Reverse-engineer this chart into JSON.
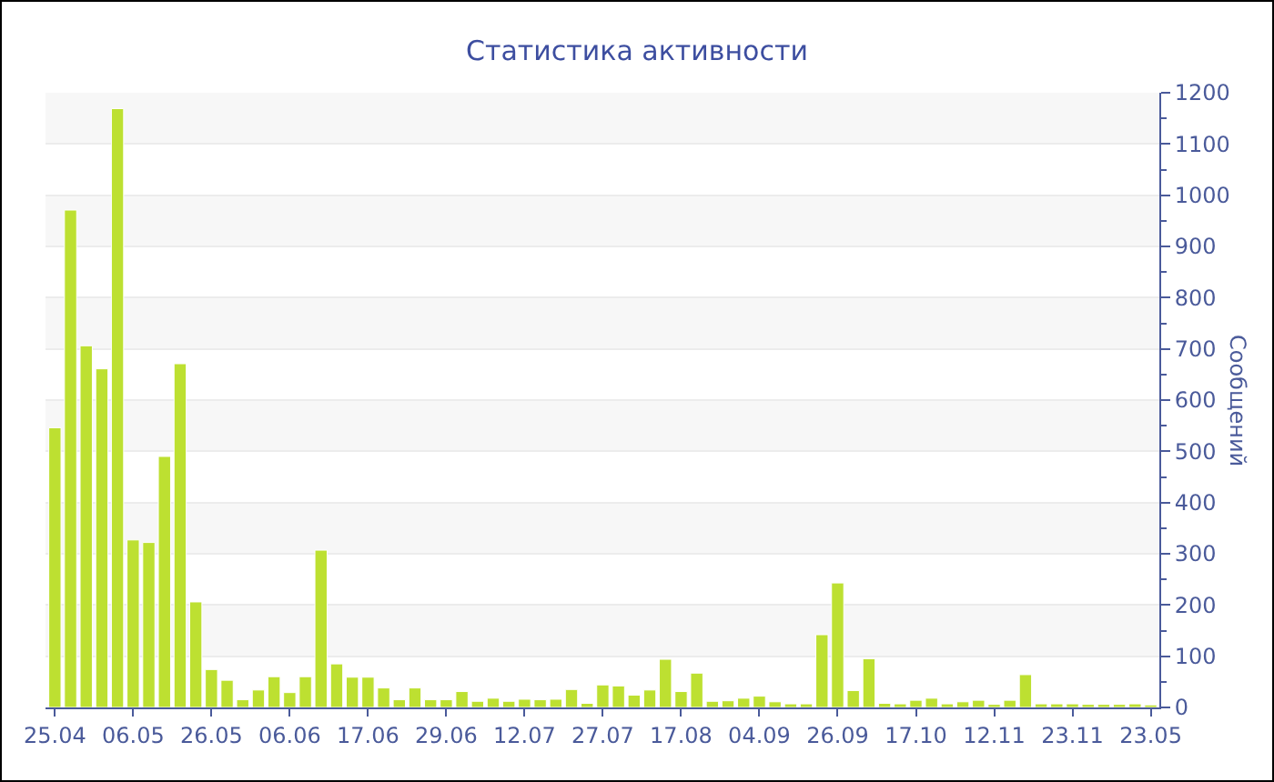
{
  "chart_data": {
    "type": "bar",
    "title": "Статистика активности",
    "ylabel": "Сообщений",
    "categories": [
      "25.04",
      null,
      null,
      null,
      null,
      "06.05",
      null,
      null,
      null,
      null,
      "26.05",
      null,
      null,
      null,
      null,
      "06.06",
      null,
      null,
      null,
      null,
      "17.06",
      null,
      null,
      null,
      null,
      "29.06",
      null,
      null,
      null,
      null,
      "12.07",
      null,
      null,
      null,
      null,
      "27.07",
      null,
      null,
      null,
      null,
      "17.08",
      null,
      null,
      null,
      null,
      "04.09",
      null,
      null,
      null,
      null,
      "26.09",
      null,
      null,
      null,
      null,
      "17.10",
      null,
      null,
      null,
      null,
      "12.11",
      null,
      null,
      null,
      null,
      "23.11",
      null,
      null,
      null,
      null,
      "23.05"
    ],
    "values": [
      546,
      971,
      706,
      661,
      1169,
      327,
      322,
      490,
      671,
      206,
      74,
      53,
      15,
      34,
      60,
      29,
      60,
      307,
      85,
      59,
      59,
      38,
      15,
      38,
      15,
      15,
      31,
      12,
      18,
      12,
      16,
      15,
      16,
      35,
      8,
      44,
      42,
      24,
      34,
      94,
      31,
      67,
      12,
      13,
      18,
      22,
      11,
      7,
      7,
      142,
      243,
      33,
      95,
      8,
      7,
      14,
      18,
      7,
      11,
      14,
      6,
      14,
      64,
      7,
      7,
      7,
      6,
      6,
      6,
      7,
      5
    ],
    "color": "#bde031",
    "ylim": [
      0,
      1200
    ],
    "yticks": [
      0,
      100,
      200,
      300,
      400,
      500,
      600,
      700,
      800,
      900,
      1000,
      1100,
      1200
    ],
    "grid": "y"
  }
}
